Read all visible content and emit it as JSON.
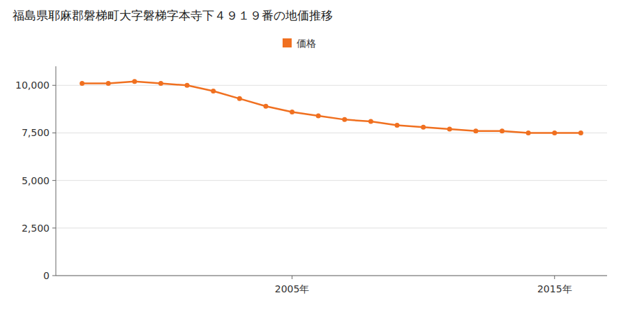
{
  "chart_data": {
    "type": "line",
    "title": "福島県耶麻郡磐梯町大字磐梯字本寺下４９１９番の地価推移",
    "x": [
      1997,
      1998,
      1999,
      2000,
      2001,
      2002,
      2003,
      2004,
      2005,
      2006,
      2007,
      2008,
      2009,
      2010,
      2011,
      2012,
      2013,
      2014,
      2015,
      2016
    ],
    "series": [
      {
        "name": "価格",
        "color": "#f07020",
        "marker": "circle",
        "values": [
          10100,
          10100,
          10200,
          10100,
          10000,
          9700,
          9300,
          8900,
          8600,
          8400,
          8200,
          8100,
          7900,
          7800,
          7700,
          7600,
          7600,
          7500,
          7500,
          7500
        ]
      }
    ],
    "xlim": [
      1996,
      2017
    ],
    "xticks": [
      {
        "value": 2005,
        "label": "2005年"
      },
      {
        "value": 2015,
        "label": "2015年"
      }
    ],
    "ylim": [
      0,
      11000
    ],
    "yticks": [
      0,
      {
        "value": 2500,
        "label": "2,500"
      },
      {
        "value": 5000,
        "label": "5,000"
      },
      {
        "value": 7500,
        "label": "7,500"
      },
      {
        "value": 10000,
        "label": "10,000"
      }
    ],
    "grid": true,
    "legend": "top"
  }
}
